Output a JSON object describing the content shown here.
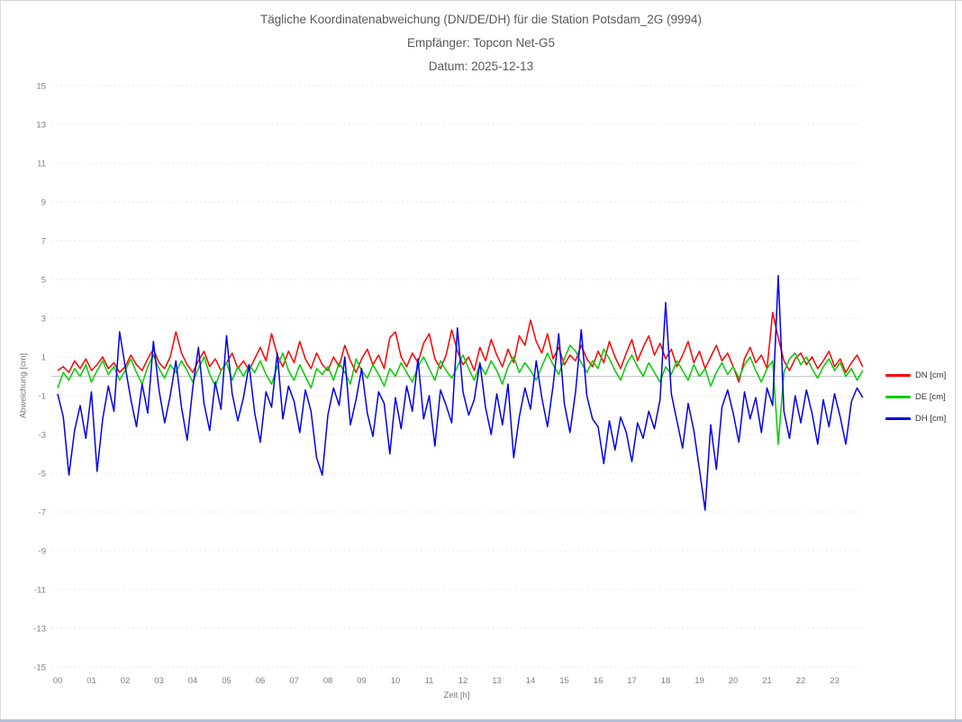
{
  "window": {
    "border_color": "#d4d4d4",
    "bottom_bar_color": "#b3bed2",
    "background": "#ffffff"
  },
  "chart_data": {
    "type": "line",
    "title": "Tägliche Koordinatenabweichung (DN/DE/DH) für die Station Potsdam_2G (9994)",
    "subtitle": "Empfänger: Topcon Net-G5",
    "date_label": "Datum: 2025-12-13",
    "xlabel": "Zeit [h]",
    "ylabel": "Abweichung [cm]",
    "xlim_hours": [
      0,
      24
    ],
    "ylim": [
      -15,
      15
    ],
    "yticks": [
      -15,
      -13,
      -11,
      -9,
      -7,
      -5,
      -3,
      -1,
      1,
      3,
      5,
      7,
      9,
      11,
      13,
      15
    ],
    "xticks": [
      "00",
      "01",
      "02",
      "03",
      "04",
      "05",
      "06",
      "07",
      "08",
      "09",
      "10",
      "11",
      "12",
      "13",
      "14",
      "15",
      "16",
      "17",
      "18",
      "19",
      "20",
      "21",
      "22",
      "23"
    ],
    "grid": {
      "horizontal": "dotted",
      "vertical": "none",
      "zero_line": "solid",
      "grid_color": "#dcdcdc",
      "zero_line_color": "#c8c8c8"
    },
    "tick_label_color": "#808080",
    "legend_position": "right",
    "x_start_hours": 0,
    "x_step_hours": 0.16667,
    "series": [
      {
        "name": "DN [cm]",
        "color": "#ff0000",
        "values": [
          0.3,
          0.5,
          0.2,
          0.8,
          0.4,
          0.9,
          0.3,
          0.6,
          1.0,
          0.4,
          0.7,
          0.2,
          0.5,
          1.1,
          0.6,
          0.3,
          0.9,
          1.4,
          0.7,
          0.4,
          1.0,
          2.3,
          1.2,
          0.6,
          0.2,
          0.8,
          1.3,
          0.5,
          0.9,
          0.3,
          0.7,
          1.2,
          0.4,
          0.8,
          0.3,
          0.9,
          1.5,
          0.8,
          2.2,
          1.1,
          0.5,
          1.3,
          0.7,
          1.8,
          0.9,
          0.4,
          1.2,
          0.6,
          0.3,
          1.0,
          0.5,
          1.6,
          0.8,
          0.2,
          0.9,
          1.4,
          0.6,
          1.1,
          0.4,
          2.0,
          2.3,
          1.0,
          0.5,
          1.2,
          0.7,
          1.7,
          2.2,
          0.9,
          0.4,
          1.1,
          2.4,
          1.3,
          0.6,
          1.0,
          0.3,
          1.5,
          0.8,
          1.9,
          1.1,
          0.5,
          1.4,
          0.7,
          2.1,
          1.6,
          2.9,
          1.8,
          1.2,
          2.2,
          0.9,
          1.5,
          0.6,
          1.1,
          0.8,
          1.6,
          0.9,
          0.5,
          1.3,
          0.7,
          1.8,
          1.0,
          0.4,
          1.2,
          1.9,
          0.8,
          1.5,
          2.1,
          1.1,
          1.7,
          0.9,
          1.4,
          0.5,
          1.1,
          1.8,
          0.7,
          1.3,
          0.4,
          1.0,
          1.6,
          0.8,
          1.2,
          0.5,
          -0.3,
          0.9,
          1.5,
          0.7,
          1.1,
          0.4,
          3.3,
          2.0,
          0.8,
          0.3,
          0.9,
          1.2,
          0.6,
          1.0,
          0.4,
          0.8,
          1.3,
          0.5,
          0.9,
          0.2,
          0.7,
          1.1,
          0.5
        ]
      },
      {
        "name": "DE [cm]",
        "color": "#00cc00",
        "values": [
          -0.6,
          0.2,
          -0.2,
          0.4,
          0.0,
          0.6,
          -0.3,
          0.3,
          0.8,
          0.1,
          0.5,
          -0.2,
          0.3,
          0.9,
          0.2,
          -0.4,
          0.5,
          1.1,
          0.4,
          -0.1,
          0.6,
          0.2,
          0.8,
          0.3,
          -0.3,
          0.4,
          1.0,
          0.1,
          -0.5,
          0.3,
          0.7,
          -0.2,
          0.5,
          0.0,
          0.6,
          0.2,
          0.8,
          0.1,
          -0.4,
          0.5,
          1.2,
          0.3,
          -0.2,
          0.6,
          0.0,
          -0.6,
          0.4,
          0.1,
          0.5,
          -0.2,
          0.7,
          0.2,
          -0.4,
          0.9,
          0.3,
          -0.1,
          0.6,
          0.1,
          -0.5,
          0.4,
          0.0,
          0.7,
          0.2,
          -0.3,
          0.5,
          1.0,
          0.4,
          -0.2,
          0.8,
          0.3,
          -0.1,
          0.5,
          1.1,
          0.4,
          -0.2,
          0.6,
          0.1,
          0.8,
          0.3,
          -0.4,
          0.5,
          1.0,
          0.2,
          0.7,
          0.3,
          -0.2,
          0.5,
          1.2,
          0.6,
          0.1,
          0.9,
          1.6,
          1.3,
          0.7,
          0.2,
          0.8,
          0.4,
          1.4,
          0.9,
          0.3,
          -0.2,
          0.6,
          1.1,
          0.5,
          0.0,
          0.7,
          0.2,
          -0.3,
          0.5,
          0.1,
          0.8,
          0.3,
          -0.2,
          0.6,
          0.0,
          0.4,
          -0.5,
          0.2,
          0.7,
          0.1,
          0.5,
          -0.1,
          0.6,
          1.0,
          0.3,
          -0.3,
          0.4,
          0.8,
          -3.5,
          0.2,
          0.9,
          1.2,
          0.6,
          1.0,
          0.4,
          -0.1,
          0.5,
          0.9,
          0.3,
          0.7,
          0.0,
          0.4,
          -0.2,
          0.3
        ]
      },
      {
        "name": "DH [cm]",
        "color": "#0000ee",
        "values": [
          -0.9,
          -2.1,
          -5.1,
          -2.8,
          -1.5,
          -3.2,
          -0.8,
          -4.9,
          -2.2,
          -0.5,
          -1.8,
          2.3,
          0.5,
          -1.2,
          -2.6,
          -0.4,
          -1.9,
          1.8,
          -0.7,
          -2.4,
          -1.0,
          0.8,
          -1.6,
          -3.3,
          -0.6,
          1.5,
          -1.4,
          -2.8,
          -0.3,
          -1.7,
          2.1,
          -0.9,
          -2.3,
          -1.1,
          0.6,
          -1.9,
          -3.4,
          -0.8,
          -1.6,
          1.2,
          -2.2,
          -0.5,
          -1.3,
          -2.9,
          -0.7,
          -1.8,
          -4.2,
          -5.1,
          -2.0,
          -0.6,
          -1.5,
          1.0,
          -2.5,
          -1.2,
          0.4,
          -1.9,
          -3.1,
          -0.8,
          -1.4,
          -4.0,
          -1.1,
          -2.7,
          -0.5,
          -1.8,
          0.9,
          -2.2,
          -1.0,
          -3.6,
          -0.7,
          -1.5,
          -2.4,
          2.5,
          -0.8,
          -2.0,
          -1.2,
          0.7,
          -1.6,
          -3.0,
          -0.9,
          -2.5,
          -0.4,
          -4.2,
          -2.1,
          -0.6,
          -1.7,
          0.8,
          -1.1,
          -2.6,
          -0.5,
          2.2,
          -1.4,
          -2.9,
          -0.8,
          2.4,
          -1.0,
          -2.2,
          -2.6,
          -4.5,
          -2.3,
          -3.8,
          -2.1,
          -2.9,
          -4.4,
          -2.4,
          -3.2,
          -1.8,
          -2.7,
          -1.2,
          3.8,
          -0.9,
          -2.3,
          -3.7,
          -1.4,
          -2.8,
          -4.8,
          -6.9,
          -2.5,
          -4.8,
          -1.6,
          -0.7,
          -1.9,
          -3.4,
          -0.8,
          -2.2,
          -1.1,
          -2.9,
          -0.6,
          -1.5,
          5.2,
          -1.8,
          -3.2,
          -1.0,
          -2.4,
          -0.7,
          -1.9,
          -3.5,
          -1.2,
          -2.6,
          -0.9,
          -2.1,
          -3.5,
          -1.3,
          -0.6,
          -1.1
        ]
      }
    ]
  }
}
